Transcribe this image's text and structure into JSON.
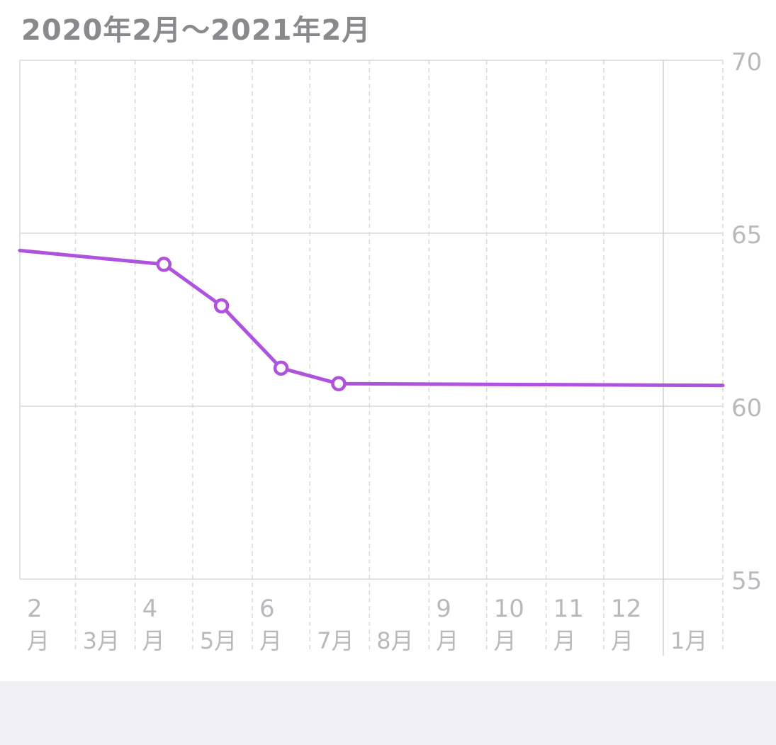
{
  "header": {
    "title": "2020年2月～2021年2月"
  },
  "colors": {
    "series": "#af52de",
    "grid": "#d9d9dd",
    "tick_label": "#b9b9bd",
    "title": "#8a8a8e",
    "footer_bg": "#f0f0f5"
  },
  "chart_data": {
    "type": "line",
    "title": "2020年2月～2021年2月",
    "xlabel": "",
    "ylabel": "",
    "x_range": [
      "2020-02-01",
      "2021-02-01"
    ],
    "ylim": [
      55,
      70
    ],
    "y_ticks": [
      55,
      60,
      65,
      70
    ],
    "y_axis_position": "right",
    "grid": true,
    "x_ticks": [
      {
        "date": "2020-02-01",
        "number": "2",
        "unit": "月"
      },
      {
        "date": "2020-03-01",
        "number": "",
        "unit": "3月"
      },
      {
        "date": "2020-04-01",
        "number": "4",
        "unit": "月"
      },
      {
        "date": "2020-05-01",
        "number": "",
        "unit": "5月"
      },
      {
        "date": "2020-06-01",
        "number": "6",
        "unit": "月"
      },
      {
        "date": "2020-07-01",
        "number": "",
        "unit": "7月"
      },
      {
        "date": "2020-08-01",
        "number": "",
        "unit": "8月"
      },
      {
        "date": "2020-09-01",
        "number": "9",
        "unit": "月"
      },
      {
        "date": "2020-10-01",
        "number": "10",
        "unit": "月"
      },
      {
        "date": "2020-11-01",
        "number": "11",
        "unit": "月"
      },
      {
        "date": "2020-12-01",
        "number": "12",
        "unit": "月"
      },
      {
        "date": "2021-01-01",
        "number": "",
        "unit": "1月"
      }
    ],
    "series": [
      {
        "points": [
          {
            "date": "2020-02-01",
            "value": 64.5,
            "marker": false
          },
          {
            "date": "2020-04-16",
            "value": 64.1,
            "marker": true
          },
          {
            "date": "2020-05-16",
            "value": 62.9,
            "marker": true
          },
          {
            "date": "2020-06-16",
            "value": 61.1,
            "marker": true
          },
          {
            "date": "2020-07-16",
            "value": 60.65,
            "marker": true
          },
          {
            "date": "2021-02-01",
            "value": 60.6,
            "marker": false
          }
        ]
      }
    ]
  }
}
